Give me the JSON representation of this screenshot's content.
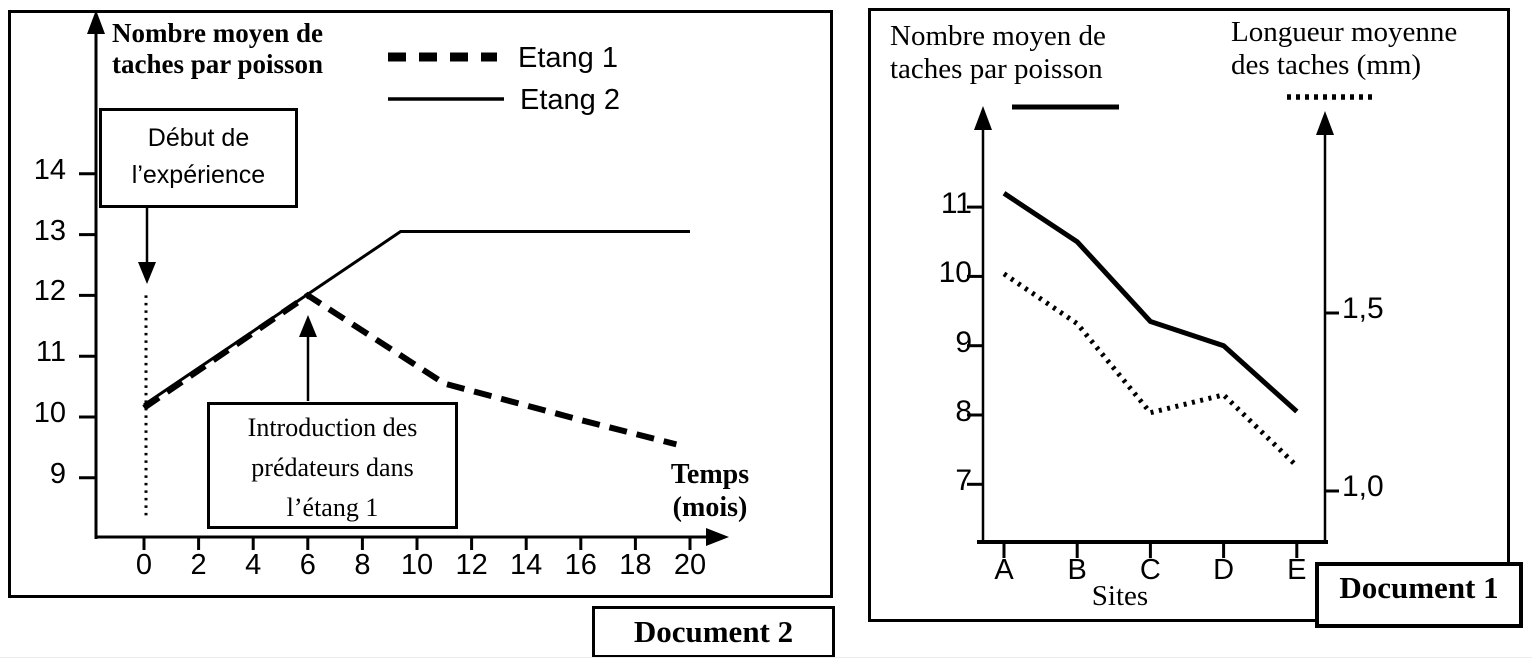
{
  "page": {
    "background": "#ffffff",
    "ink": "#000000"
  },
  "doc2": {
    "panel_label": "Document 2",
    "axis_title_line1": "Nombre moyen de",
    "axis_title_line2": "taches par poisson",
    "x_title_line1": "Temps",
    "x_title_line2": "(mois)",
    "legend": [
      {
        "label": "Etang 1",
        "style": "dashed"
      },
      {
        "label": "Etang 2",
        "style": "solid"
      }
    ],
    "annotation_start_line1": "Début de",
    "annotation_start_line2": "l’expérience",
    "annotation_predators_line1": "Introduction des",
    "annotation_predators_line2": "prédateurs dans",
    "annotation_predators_line3": "l’étang 1"
  },
  "doc1": {
    "panel_label": "Document 1",
    "left_axis_title_line1": "Nombre moyen de",
    "left_axis_title_line2": "taches par poisson",
    "right_axis_title_line1": "Longueur moyenne",
    "right_axis_title_line2": "des taches (mm)",
    "x_axis_label": "Sites"
  },
  "chart_data": [
    {
      "id": "document-2",
      "type": "line",
      "title": "Nombre moyen de taches par poisson",
      "xlabel": "Temps (mois)",
      "ylabel": "Nombre moyen de taches par poisson",
      "x_ticks": [
        0,
        2,
        4,
        6,
        8,
        10,
        12,
        14,
        16,
        18,
        20
      ],
      "y_ticks": [
        14,
        13,
        12,
        11,
        10,
        9
      ],
      "xlim": [
        0,
        21.5
      ],
      "ylim": [
        8.3,
        15
      ],
      "grid": false,
      "legend_position": "top",
      "series": [
        {
          "name": "Etang 1",
          "style": "dashed",
          "points": [
            [
              0,
              10.15
            ],
            [
              6,
              12.0
            ],
            [
              11,
              10.55
            ],
            [
              16,
              9.95
            ],
            [
              19.5,
              9.55
            ]
          ]
        },
        {
          "name": "Etang 2",
          "style": "solid",
          "points": [
            [
              0,
              10.2
            ],
            [
              9.4,
              13.05
            ],
            [
              20,
              13.05
            ]
          ]
        }
      ],
      "annotations": [
        {
          "text": "Début de l’expérience",
          "points_to": {
            "x": 0
          },
          "marker": "dotted-vertical-line",
          "marker_y_range": [
            8.3,
            12.0
          ]
        },
        {
          "text": "Introduction des prédateurs dans l’étang 1",
          "points_to": {
            "x": 6,
            "y": 12.0
          }
        }
      ]
    },
    {
      "id": "document-1",
      "type": "line",
      "categories": [
        "A",
        "B",
        "C",
        "D",
        "E"
      ],
      "xlabel": "Sites",
      "left_axis": {
        "label": "Nombre moyen de taches par poisson",
        "ticks": [
          11,
          10,
          9,
          8,
          7
        ]
      },
      "right_axis": {
        "label": "Longueur moyenne des taches (mm)",
        "ticks": [
          {
            "label": "1,5",
            "value": 1.5
          },
          {
            "label": "1,0",
            "value": 1.0
          }
        ]
      },
      "grid": false,
      "series": [
        {
          "name": "Nombre moyen de taches par poisson",
          "axis": "left",
          "style": "solid",
          "values": [
            11.2,
            10.5,
            9.35,
            9.0,
            8.05
          ]
        },
        {
          "name": "Longueur moyenne des taches (mm)",
          "axis": "right",
          "style": "dotted",
          "values": [
            1.61,
            1.47,
            1.22,
            1.27,
            1.07
          ]
        }
      ]
    }
  ]
}
